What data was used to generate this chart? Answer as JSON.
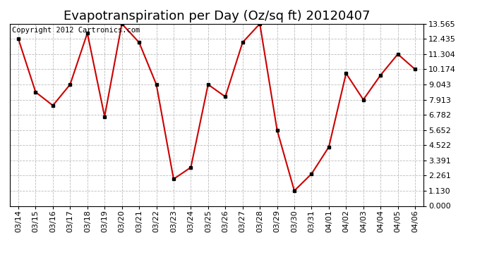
{
  "title": "Evapotranspiration per Day (Oz/sq ft) 20120407",
  "copyright_text": "Copyright 2012 Cartronics.com",
  "x_labels": [
    "03/14",
    "03/15",
    "03/16",
    "03/17",
    "03/18",
    "03/19",
    "03/20",
    "03/21",
    "03/22",
    "03/23",
    "03/24",
    "03/25",
    "03/26",
    "03/27",
    "03/28",
    "03/29",
    "03/30",
    "03/31",
    "04/01",
    "04/02",
    "04/03",
    "04/04",
    "04/05",
    "04/06"
  ],
  "y_values": [
    12.435,
    8.478,
    7.478,
    9.043,
    12.87,
    6.652,
    13.565,
    12.174,
    9.043,
    2.0,
    2.87,
    9.043,
    8.13,
    12.174,
    13.565,
    5.652,
    1.13,
    2.391,
    4.391,
    9.87,
    7.913,
    9.739,
    11.304,
    10.174
  ],
  "y_ticks": [
    0.0,
    1.13,
    2.261,
    3.391,
    4.522,
    5.652,
    6.782,
    7.913,
    9.043,
    10.174,
    11.304,
    12.435,
    13.565
  ],
  "line_color": "#cc0000",
  "marker_color": "#000000",
  "background_color": "#ffffff",
  "grid_color": "#bbbbbb",
  "ylim": [
    0.0,
    13.565
  ],
  "title_fontsize": 13,
  "copyright_fontsize": 7.5,
  "tick_fontsize": 8,
  "ytick_fontsize": 8
}
